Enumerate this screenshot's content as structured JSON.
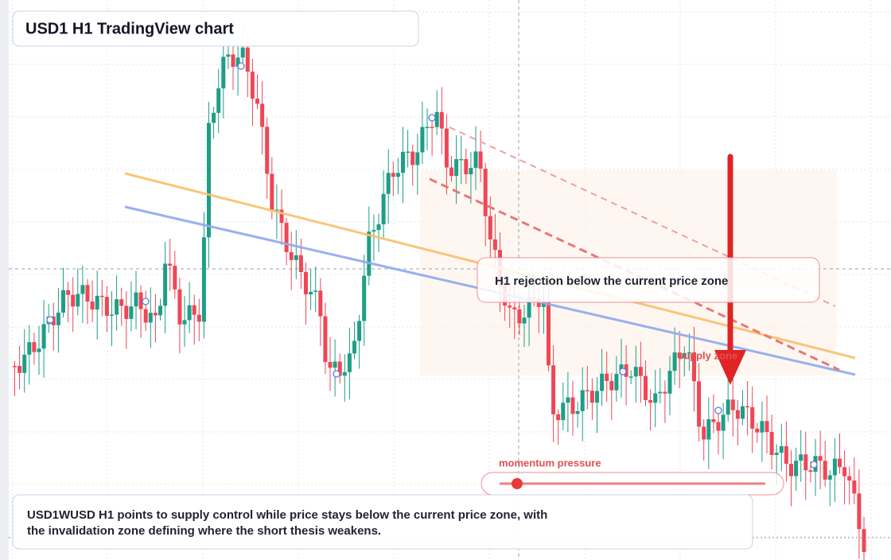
{
  "title": "USD1 H1 TradingView chart",
  "annotation": "H1 rejection below the current price zone",
  "zone_label": "supply zone",
  "momentum_label": "momentum pressure",
  "summary": {
    "lines": [
      "USD1WUSD H1 points to supply control while price stays below the current price zone, with",
      "the invalidation zone defining where the short thesis weakens."
    ]
  }
}
